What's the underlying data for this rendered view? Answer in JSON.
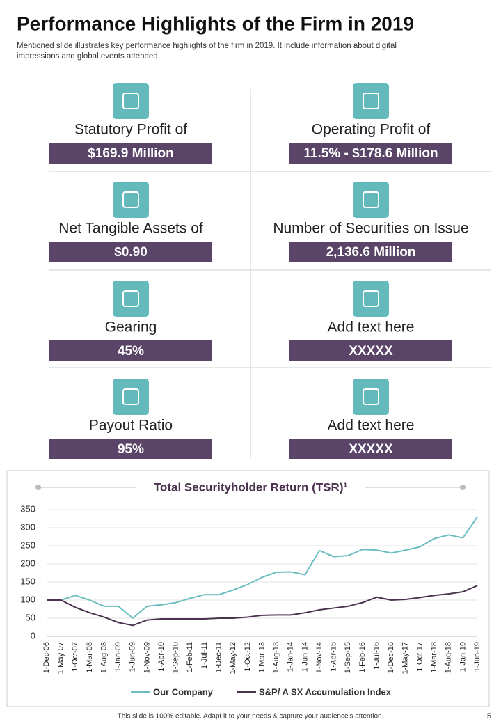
{
  "header": {
    "title": "Performance Highlights of the Firm in 2019",
    "subtitle_lines": [
      "Mentioned slide illustrates  key performance  highlights of the firm in 2019. It include information about digital",
      "impressions and global events  attended."
    ]
  },
  "cards": [
    {
      "label": "Statutory Profit of",
      "value": "$169.9 Million"
    },
    {
      "label": "Operating Profit of",
      "value": "11.5% - $178.6 Million"
    },
    {
      "label": "Net Tangible Assets  of",
      "value": "$0.90"
    },
    {
      "label": "Number of Securities on Issue",
      "value": "2,136.6 Million"
    },
    {
      "label": "Gearing",
      "value": "45%"
    },
    {
      "label": "Add text here",
      "value": "XXXXX"
    },
    {
      "label": "Payout Ratio",
      "value": "95%"
    },
    {
      "label": "Add text here",
      "value": "XXXXX"
    }
  ],
  "chart_data": {
    "type": "line",
    "title": "Total Securityholder Return (TSR)¹",
    "categories": [
      "1-Dec-06",
      "1-May-07",
      "1-Oct-07",
      "1-Mar-08",
      "1-Aug-08",
      "1-Jan-09",
      "1-Jun-09",
      "1-Nov-09",
      "1-Apr-10",
      "1-Sep-10",
      "1-Feb-11",
      "1-Jul-11",
      "1-Dec-11",
      "1-May-12",
      "1-Oct-12",
      "1-Mar-13",
      "1-Aug-13",
      "1-Jan-14",
      "1-Jun-14",
      "1-Nov-14",
      "1-Apr-15",
      "1-Sep-15",
      "1-Feb-16",
      "1-Jul-16",
      "1-Dec-16",
      "1-May-17",
      "1-Oct-17",
      "1-Mar-18",
      "1-Aug-18",
      "1-Jan-19",
      "1-Jun-19"
    ],
    "series": [
      {
        "name": "Our Company",
        "color": "#6bbcc0",
        "values": [
          100,
          100,
          113,
          100,
          83,
          83,
          50,
          83,
          87,
          93,
          105,
          115,
          115,
          128,
          143,
          163,
          177,
          178,
          170,
          237,
          220,
          223,
          240,
          238,
          230,
          238,
          247,
          270,
          280,
          272,
          330
        ]
      },
      {
        "name": "S&P/ A SX Accumulation Index",
        "color": "#4b3350",
        "values": [
          100,
          100,
          80,
          65,
          53,
          38,
          30,
          45,
          48,
          48,
          48,
          48,
          50,
          50,
          53,
          58,
          59,
          59,
          65,
          73,
          78,
          83,
          93,
          108,
          100,
          102,
          107,
          113,
          117,
          123,
          140
        ]
      }
    ],
    "ylim": [
      0,
      350
    ],
    "yticks": [
      0,
      50,
      100,
      150,
      200,
      250,
      300,
      350
    ],
    "grid": true,
    "legend": "bottom"
  },
  "footer": {
    "note": "This slide is 100% editable.  Adapt it to your needs & capture your audience's attention.",
    "page_number": "5"
  }
}
